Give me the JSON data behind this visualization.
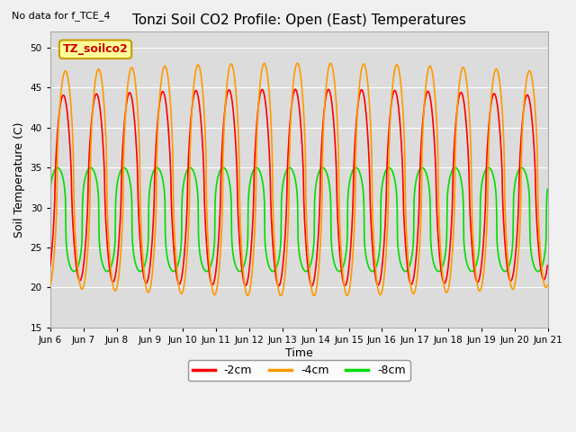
{
  "title": "Tonzi Soil CO2 Profile: Open (East) Temperatures",
  "subtitle": "No data for f_TCE_4",
  "ylabel": "Soil Temperature (C)",
  "xlabel": "Time",
  "ylim": [
    15,
    52
  ],
  "yticks": [
    15,
    20,
    25,
    30,
    35,
    40,
    45,
    50
  ],
  "fig_bg_color": "#f0f0f0",
  "plot_bg_color": "#dcdcdc",
  "line_colors": {
    "neg2cm": "#ff0000",
    "neg4cm": "#ff9900",
    "neg8cm": "#00dd00"
  },
  "line_widths": {
    "neg2cm": 1.2,
    "neg4cm": 1.2,
    "neg8cm": 1.2
  },
  "legend_labels": [
    "-2cm",
    "-4cm",
    "-8cm"
  ],
  "box_label": "TZ_soilco2",
  "box_color": "#ffff99",
  "box_border": "#cc9900",
  "start_day": 6,
  "end_day": 21,
  "num_points": 1440,
  "mean_4cm": 33.5,
  "mean_2cm": 32.5,
  "mean_8cm": 28.5,
  "amp_4cm": 13.5,
  "amp_2cm": 11.5,
  "amp_8cm": 6.5,
  "phase_4cm": -1.3,
  "phase_2cm": -0.9,
  "phase_8cm": 0.2
}
